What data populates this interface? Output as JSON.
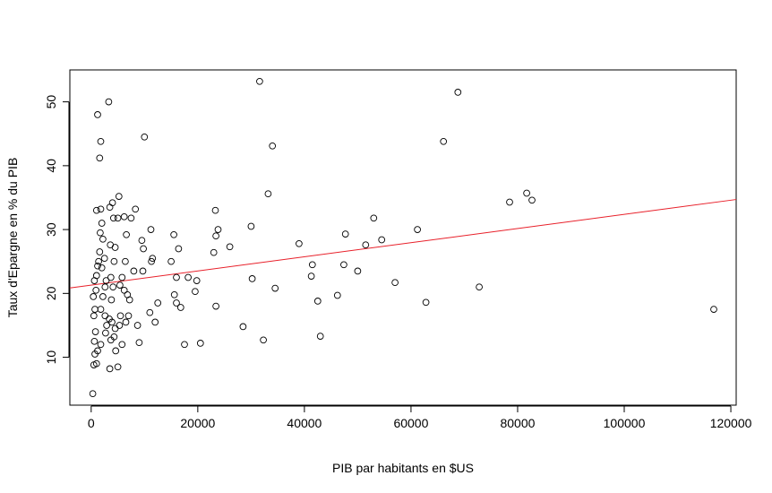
{
  "chart_data": {
    "type": "scatter",
    "title": "",
    "xlabel": "PIB par habitants en $US",
    "ylabel": "Taux d'Epargne en % du PIB",
    "xlim": [
      -4000,
      121000
    ],
    "ylim": [
      2.5,
      55
    ],
    "x_ticks": [
      0,
      20000,
      40000,
      60000,
      80000,
      100000,
      120000
    ],
    "x_tick_labels": [
      "0",
      "20000",
      "40000",
      "60000",
      "80000",
      "100000",
      "120000"
    ],
    "y_ticks": [
      10,
      20,
      30,
      40,
      50
    ],
    "y_tick_labels": [
      "10",
      "20",
      "30",
      "40",
      "50"
    ],
    "grid": false,
    "point_color": "#000000",
    "line_color": "#e8202a",
    "regression_line": {
      "intercept": 21.3,
      "slope": 0.0001108
    },
    "points": [
      {
        "x": 300,
        "y": 4.3
      },
      {
        "x": 500,
        "y": 8.8
      },
      {
        "x": 700,
        "y": 10.5
      },
      {
        "x": 600,
        "y": 12.5
      },
      {
        "x": 800,
        "y": 14.0
      },
      {
        "x": 500,
        "y": 16.5
      },
      {
        "x": 700,
        "y": 17.5
      },
      {
        "x": 400,
        "y": 19.5
      },
      {
        "x": 900,
        "y": 20.5
      },
      {
        "x": 600,
        "y": 22.0
      },
      {
        "x": 1000,
        "y": 22.8
      },
      {
        "x": 1200,
        "y": 24.3
      },
      {
        "x": 1400,
        "y": 25.0
      },
      {
        "x": 1600,
        "y": 26.5
      },
      {
        "x": 1000,
        "y": 33.0
      },
      {
        "x": 1200,
        "y": 48.0
      },
      {
        "x": 1800,
        "y": 43.8
      },
      {
        "x": 1600,
        "y": 41.2
      },
      {
        "x": 1800,
        "y": 33.2
      },
      {
        "x": 2000,
        "y": 31.0
      },
      {
        "x": 1700,
        "y": 29.5
      },
      {
        "x": 2200,
        "y": 28.5
      },
      {
        "x": 2500,
        "y": 25.5
      },
      {
        "x": 2000,
        "y": 24.0
      },
      {
        "x": 2800,
        "y": 22.0
      },
      {
        "x": 2600,
        "y": 21.0
      },
      {
        "x": 2200,
        "y": 19.5
      },
      {
        "x": 1800,
        "y": 17.5
      },
      {
        "x": 2600,
        "y": 16.5
      },
      {
        "x": 2900,
        "y": 15.0
      },
      {
        "x": 2700,
        "y": 13.8
      },
      {
        "x": 1800,
        "y": 12.0
      },
      {
        "x": 1200,
        "y": 11.0
      },
      {
        "x": 1000,
        "y": 9.0
      },
      {
        "x": 3300,
        "y": 50.0
      },
      {
        "x": 3500,
        "y": 33.5
      },
      {
        "x": 4000,
        "y": 34.2
      },
      {
        "x": 4200,
        "y": 31.8
      },
      {
        "x": 3600,
        "y": 27.6
      },
      {
        "x": 4500,
        "y": 27.2
      },
      {
        "x": 4300,
        "y": 25.0
      },
      {
        "x": 3700,
        "y": 22.5
      },
      {
        "x": 4100,
        "y": 21.0
      },
      {
        "x": 3800,
        "y": 19.0
      },
      {
        "x": 3400,
        "y": 16.0
      },
      {
        "x": 3900,
        "y": 15.5
      },
      {
        "x": 4500,
        "y": 14.5
      },
      {
        "x": 3700,
        "y": 12.7
      },
      {
        "x": 4300,
        "y": 13.2
      },
      {
        "x": 4600,
        "y": 11.0
      },
      {
        "x": 3500,
        "y": 8.2
      },
      {
        "x": 5000,
        "y": 31.8
      },
      {
        "x": 5200,
        "y": 35.2
      },
      {
        "x": 5400,
        "y": 21.3
      },
      {
        "x": 5800,
        "y": 22.5
      },
      {
        "x": 5500,
        "y": 16.5
      },
      {
        "x": 5300,
        "y": 15.0
      },
      {
        "x": 5800,
        "y": 12.0
      },
      {
        "x": 5000,
        "y": 8.5
      },
      {
        "x": 6200,
        "y": 32.0
      },
      {
        "x": 6600,
        "y": 29.2
      },
      {
        "x": 6400,
        "y": 25.0
      },
      {
        "x": 6200,
        "y": 20.5
      },
      {
        "x": 6800,
        "y": 19.8
      },
      {
        "x": 6500,
        "y": 15.5
      },
      {
        "x": 7000,
        "y": 16.5
      },
      {
        "x": 7200,
        "y": 19.0
      },
      {
        "x": 7500,
        "y": 31.8
      },
      {
        "x": 8300,
        "y": 33.2
      },
      {
        "x": 8000,
        "y": 23.5
      },
      {
        "x": 8700,
        "y": 15.0
      },
      {
        "x": 9000,
        "y": 12.3
      },
      {
        "x": 9500,
        "y": 28.3
      },
      {
        "x": 9800,
        "y": 27.0
      },
      {
        "x": 9700,
        "y": 23.5
      },
      {
        "x": 10000,
        "y": 44.5
      },
      {
        "x": 11200,
        "y": 30.0
      },
      {
        "x": 11500,
        "y": 25.5
      },
      {
        "x": 11300,
        "y": 25.0
      },
      {
        "x": 11000,
        "y": 17.0
      },
      {
        "x": 12000,
        "y": 15.5
      },
      {
        "x": 12500,
        "y": 18.5
      },
      {
        "x": 15000,
        "y": 25.0
      },
      {
        "x": 15500,
        "y": 29.2
      },
      {
        "x": 15600,
        "y": 19.8
      },
      {
        "x": 16000,
        "y": 22.5
      },
      {
        "x": 16400,
        "y": 27.0
      },
      {
        "x": 16000,
        "y": 18.5
      },
      {
        "x": 16800,
        "y": 17.8
      },
      {
        "x": 17500,
        "y": 12.0
      },
      {
        "x": 18200,
        "y": 22.5
      },
      {
        "x": 19500,
        "y": 20.3
      },
      {
        "x": 19800,
        "y": 22.0
      },
      {
        "x": 20500,
        "y": 12.2
      },
      {
        "x": 23000,
        "y": 26.4
      },
      {
        "x": 23300,
        "y": 33.0
      },
      {
        "x": 23400,
        "y": 29.0
      },
      {
        "x": 23800,
        "y": 30.0
      },
      {
        "x": 23400,
        "y": 18.0
      },
      {
        "x": 26000,
        "y": 27.3
      },
      {
        "x": 28500,
        "y": 14.8
      },
      {
        "x": 30000,
        "y": 30.5
      },
      {
        "x": 30200,
        "y": 22.3
      },
      {
        "x": 31600,
        "y": 53.2
      },
      {
        "x": 32300,
        "y": 12.7
      },
      {
        "x": 33200,
        "y": 35.6
      },
      {
        "x": 34000,
        "y": 43.1
      },
      {
        "x": 34500,
        "y": 20.8
      },
      {
        "x": 39000,
        "y": 27.8
      },
      {
        "x": 41300,
        "y": 22.7
      },
      {
        "x": 41500,
        "y": 24.5
      },
      {
        "x": 42500,
        "y": 18.8
      },
      {
        "x": 43000,
        "y": 13.3
      },
      {
        "x": 46200,
        "y": 19.7
      },
      {
        "x": 47400,
        "y": 24.5
      },
      {
        "x": 47700,
        "y": 29.3
      },
      {
        "x": 50000,
        "y": 23.5
      },
      {
        "x": 51500,
        "y": 27.6
      },
      {
        "x": 53000,
        "y": 31.8
      },
      {
        "x": 54500,
        "y": 28.4
      },
      {
        "x": 57000,
        "y": 21.7
      },
      {
        "x": 61200,
        "y": 30.0
      },
      {
        "x": 62800,
        "y": 18.6
      },
      {
        "x": 66100,
        "y": 43.8
      },
      {
        "x": 68800,
        "y": 51.5
      },
      {
        "x": 72800,
        "y": 21.0
      },
      {
        "x": 78500,
        "y": 34.3
      },
      {
        "x": 81700,
        "y": 35.7
      },
      {
        "x": 82700,
        "y": 34.6
      },
      {
        "x": 116800,
        "y": 17.5
      }
    ]
  }
}
